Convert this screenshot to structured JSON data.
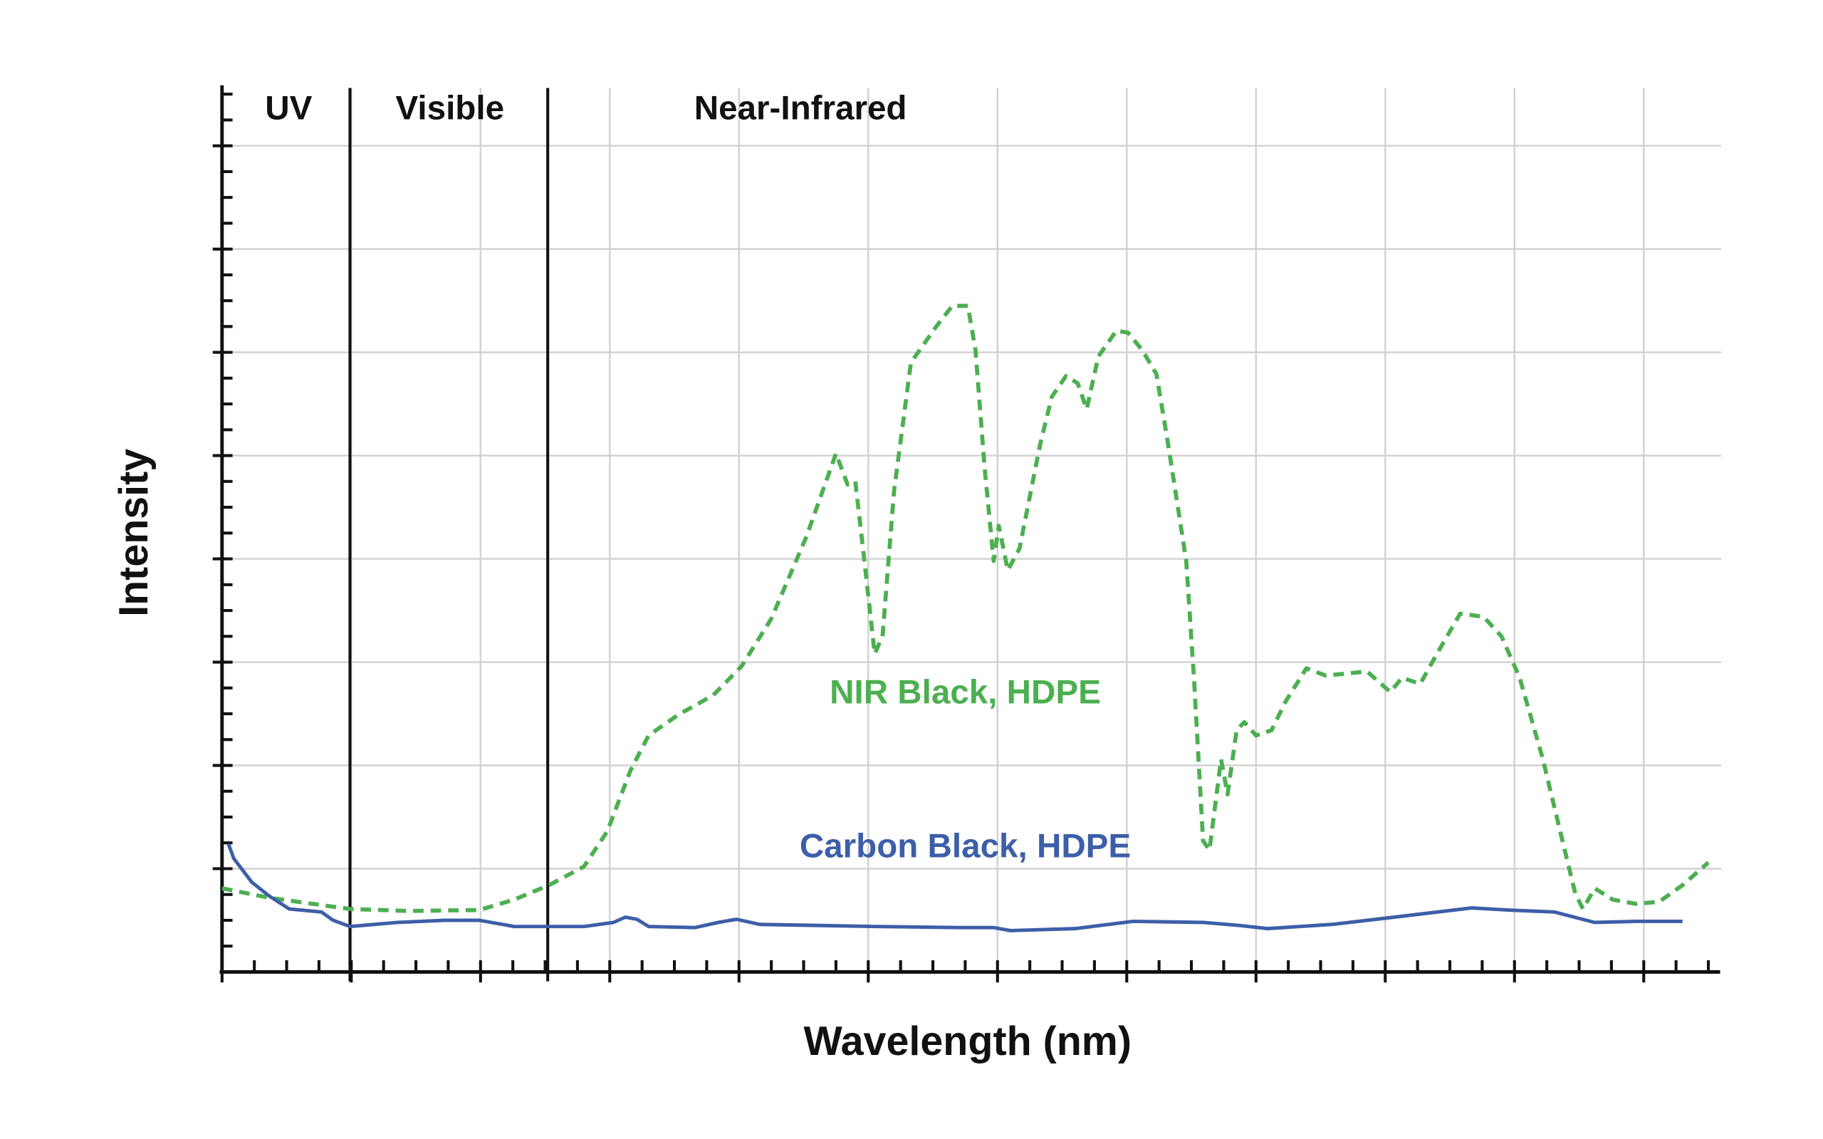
{
  "chart_data": {
    "type": "line",
    "title": "",
    "xlabel": "Wavelength (nm)",
    "ylabel": "Intensity",
    "xlim": [
      0,
      11.57
    ],
    "ylim": [
      0,
      8.56
    ],
    "x_unit_note": "values in gridline units (no numeric tick labels shown)",
    "grid": true,
    "regions": [
      {
        "label": "UV",
        "from": 0,
        "to": 0.99
      },
      {
        "label": "Visible",
        "from": 0.99,
        "to": 2.52
      },
      {
        "label": "Near-Infrared",
        "from": 2.52,
        "to": 11.57
      }
    ],
    "series": [
      {
        "name": "NIR Black, HDPE",
        "color": "#4caf50",
        "style": "dashed",
        "points": [
          [
            0,
            0.81
          ],
          [
            0.36,
            0.72
          ],
          [
            0.81,
            0.64
          ],
          [
            0.99,
            0.61
          ],
          [
            1.45,
            0.59
          ],
          [
            1.99,
            0.6
          ],
          [
            2.26,
            0.7
          ],
          [
            2.53,
            0.84
          ],
          [
            2.8,
            1.02
          ],
          [
            2.98,
            1.36
          ],
          [
            3.16,
            1.95
          ],
          [
            3.3,
            2.29
          ],
          [
            3.53,
            2.49
          ],
          [
            3.8,
            2.68
          ],
          [
            4.02,
            2.96
          ],
          [
            4.25,
            3.42
          ],
          [
            4.52,
            4.21
          ],
          [
            4.75,
            5.02
          ],
          [
            4.84,
            4.72
          ],
          [
            4.9,
            4.75
          ],
          [
            4.97,
            3.98
          ],
          [
            5.05,
            3.08
          ],
          [
            5.11,
            3.25
          ],
          [
            5.2,
            4.66
          ],
          [
            5.33,
            5.9
          ],
          [
            5.52,
            6.24
          ],
          [
            5.65,
            6.45
          ],
          [
            5.77,
            6.45
          ],
          [
            5.83,
            6.02
          ],
          [
            5.9,
            4.89
          ],
          [
            5.97,
            3.98
          ],
          [
            6.01,
            4.32
          ],
          [
            6.08,
            3.89
          ],
          [
            6.17,
            4.1
          ],
          [
            6.33,
            5.11
          ],
          [
            6.42,
            5.57
          ],
          [
            6.53,
            5.77
          ],
          [
            6.62,
            5.7
          ],
          [
            6.69,
            5.45
          ],
          [
            6.78,
            5.96
          ],
          [
            6.92,
            6.21
          ],
          [
            7.01,
            6.19
          ],
          [
            7.12,
            6.02
          ],
          [
            7.23,
            5.79
          ],
          [
            7.32,
            5.11
          ],
          [
            7.46,
            3.98
          ],
          [
            7.52,
            2.85
          ],
          [
            7.59,
            1.27
          ],
          [
            7.64,
            1.18
          ],
          [
            7.73,
            2.06
          ],
          [
            7.78,
            1.72
          ],
          [
            7.85,
            2.34
          ],
          [
            7.91,
            2.42
          ],
          [
            8.0,
            2.29
          ],
          [
            8.12,
            2.34
          ],
          [
            8.23,
            2.62
          ],
          [
            8.39,
            2.94
          ],
          [
            8.54,
            2.87
          ],
          [
            8.86,
            2.91
          ],
          [
            9.04,
            2.71
          ],
          [
            9.13,
            2.85
          ],
          [
            9.27,
            2.79
          ],
          [
            9.4,
            3.08
          ],
          [
            9.58,
            3.47
          ],
          [
            9.76,
            3.44
          ],
          [
            9.9,
            3.25
          ],
          [
            10.04,
            2.85
          ],
          [
            10.22,
            2.06
          ],
          [
            10.35,
            1.38
          ],
          [
            10.47,
            0.76
          ],
          [
            10.53,
            0.61
          ],
          [
            10.62,
            0.81
          ],
          [
            10.76,
            0.7
          ],
          [
            10.94,
            0.66
          ],
          [
            11.12,
            0.68
          ],
          [
            11.3,
            0.84
          ],
          [
            11.5,
            1.06
          ]
        ]
      },
      {
        "name": "Carbon Black, HDPE",
        "color": "#3d5ea8",
        "style": "solid",
        "points": [
          [
            0.05,
            1.24
          ],
          [
            0.09,
            1.1
          ],
          [
            0.23,
            0.87
          ],
          [
            0.36,
            0.74
          ],
          [
            0.52,
            0.61
          ],
          [
            0.77,
            0.58
          ],
          [
            0.86,
            0.5
          ],
          [
            0.99,
            0.44
          ],
          [
            1.36,
            0.48
          ],
          [
            1.72,
            0.5
          ],
          [
            1.99,
            0.5
          ],
          [
            2.17,
            0.46
          ],
          [
            2.26,
            0.44
          ],
          [
            2.8,
            0.44
          ],
          [
            3.03,
            0.48
          ],
          [
            3.12,
            0.53
          ],
          [
            3.21,
            0.51
          ],
          [
            3.3,
            0.44
          ],
          [
            3.66,
            0.43
          ],
          [
            3.84,
            0.48
          ],
          [
            3.98,
            0.51
          ],
          [
            4.16,
            0.46
          ],
          [
            5.06,
            0.44
          ],
          [
            5.7,
            0.43
          ],
          [
            5.97,
            0.43
          ],
          [
            6.1,
            0.4
          ],
          [
            6.6,
            0.42
          ],
          [
            7.05,
            0.49
          ],
          [
            7.59,
            0.48
          ],
          [
            7.87,
            0.45
          ],
          [
            8.09,
            0.42
          ],
          [
            8.59,
            0.46
          ],
          [
            9.13,
            0.54
          ],
          [
            9.67,
            0.62
          ],
          [
            9.95,
            0.6
          ],
          [
            10.31,
            0.58
          ],
          [
            10.62,
            0.48
          ],
          [
            10.94,
            0.49
          ],
          [
            11.3,
            0.49
          ]
        ]
      }
    ]
  }
}
